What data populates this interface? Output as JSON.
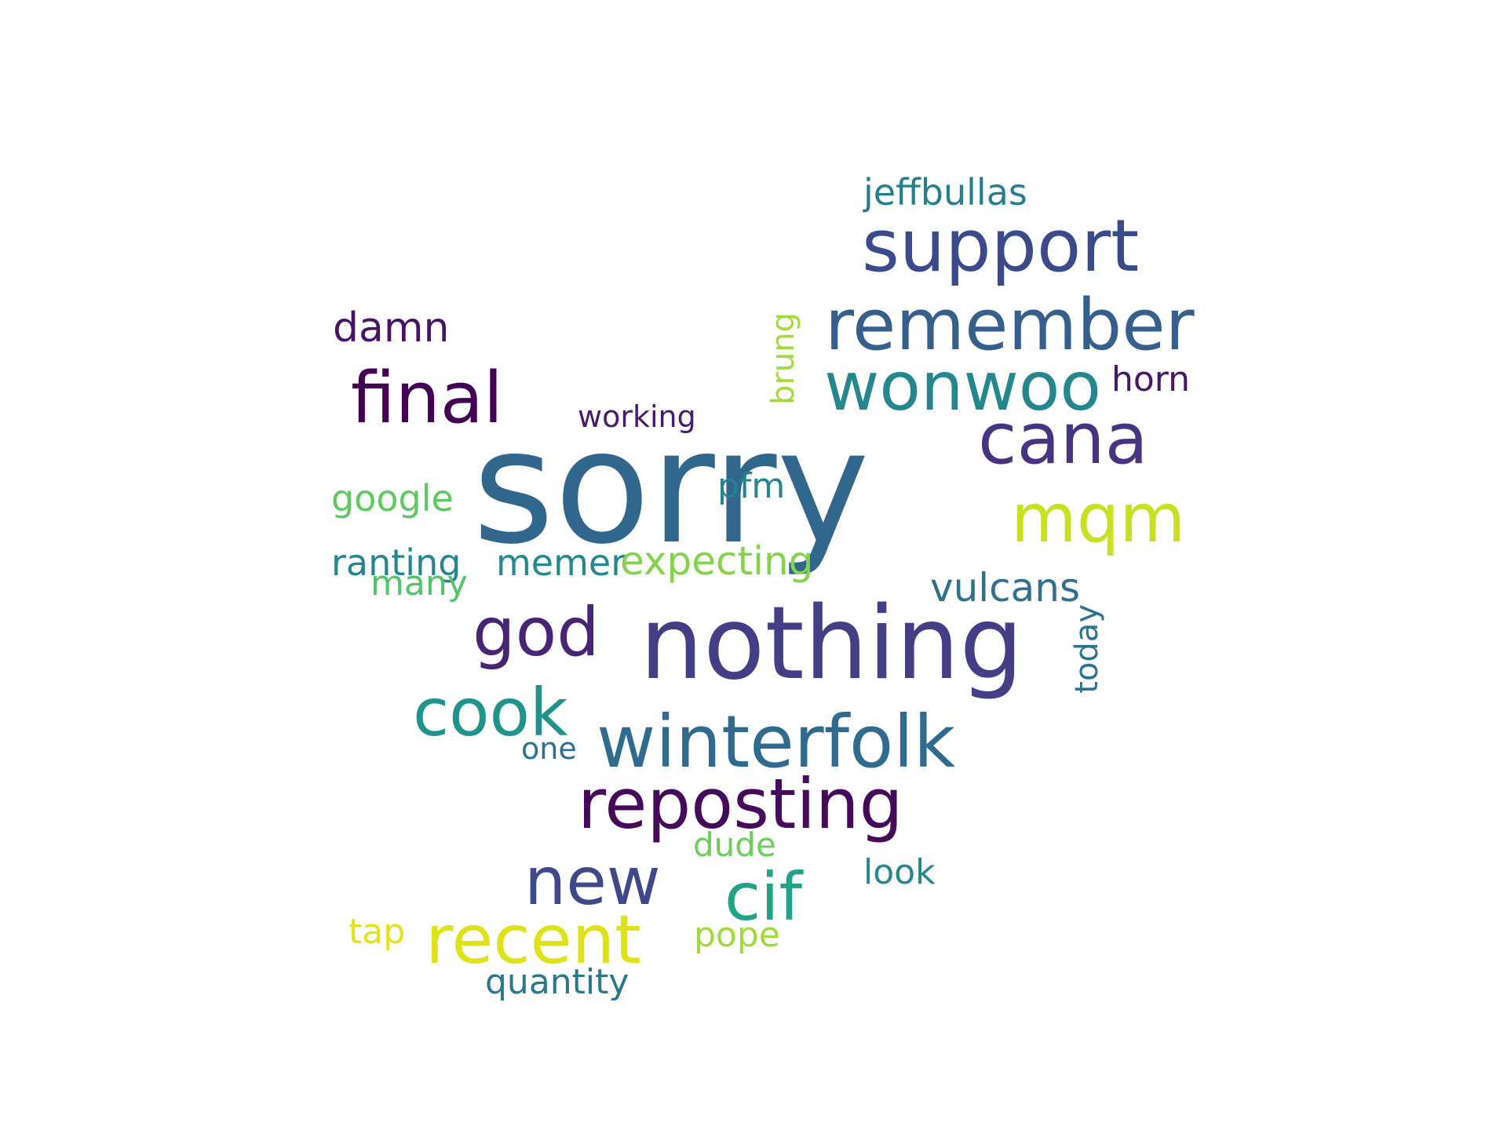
{
  "words": [
    {
      "key": "sorry",
      "text": "sorry",
      "color": "#31668d"
    },
    {
      "key": "nothing",
      "text": "nothing",
      "color": "#433e85"
    },
    {
      "key": "support",
      "text": "support",
      "color": "#3b4a8b"
    },
    {
      "key": "remember",
      "text": "remember",
      "color": "#35608d"
    },
    {
      "key": "wonwoo",
      "text": "wonwoo",
      "color": "#24878e"
    },
    {
      "key": "final",
      "text": "final",
      "color": "#440154"
    },
    {
      "key": "cana",
      "text": "cana",
      "color": "#463480"
    },
    {
      "key": "mqm",
      "text": "mqm",
      "color": "#c8e020"
    },
    {
      "key": "winterfolk",
      "text": "winterfolk",
      "color": "#2f6b8e"
    },
    {
      "key": "reposting",
      "text": "reposting",
      "color": "#450b5a"
    },
    {
      "key": "god",
      "text": "god",
      "color": "#482475"
    },
    {
      "key": "cook",
      "text": "cook",
      "color": "#1f948c"
    },
    {
      "key": "new",
      "text": "new",
      "color": "#3f4889"
    },
    {
      "key": "cif",
      "text": "cif",
      "color": "#20a386"
    },
    {
      "key": "recent",
      "text": "recent",
      "color": "#dde318"
    },
    {
      "key": "damn",
      "text": "damn",
      "color": "#471365"
    },
    {
      "key": "jeffbullas",
      "text": "jeffbullas",
      "color": "#277f8e"
    },
    {
      "key": "horn",
      "text": "horn",
      "color": "#481668"
    },
    {
      "key": "working",
      "text": "working",
      "color": "#481a6c"
    },
    {
      "key": "google",
      "text": "google",
      "color": "#5ec962"
    },
    {
      "key": "pfm",
      "text": "pfm",
      "color": "#25838e"
    },
    {
      "key": "ranting",
      "text": "ranting",
      "color": "#24868e"
    },
    {
      "key": "memer",
      "text": "memer",
      "color": "#23898e"
    },
    {
      "key": "expecting",
      "text": "expecting",
      "color": "#84d44b"
    },
    {
      "key": "many",
      "text": "many",
      "color": "#52c569"
    },
    {
      "key": "vulcans",
      "text": "vulcans",
      "color": "#2d718e"
    },
    {
      "key": "one",
      "text": "one",
      "color": "#2c728e"
    },
    {
      "key": "dude",
      "text": "dude",
      "color": "#6ccd5a"
    },
    {
      "key": "look",
      "text": "look",
      "color": "#24868e"
    },
    {
      "key": "tap",
      "text": "tap",
      "color": "#e2e418"
    },
    {
      "key": "pope",
      "text": "pope",
      "color": "#a0da39"
    },
    {
      "key": "quantity",
      "text": "quantity",
      "color": "#2a788e"
    },
    {
      "key": "brung",
      "text": "brung",
      "color": "#a5db36"
    },
    {
      "key": "today",
      "text": "today",
      "color": "#2c738e"
    }
  ]
}
